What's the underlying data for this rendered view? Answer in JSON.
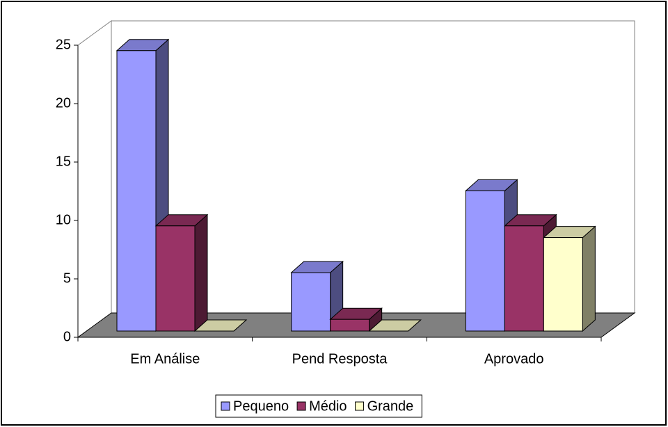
{
  "chart_data": {
    "type": "bar",
    "categories": [
      "Em Análise",
      "Pend Resposta",
      "Aprovado"
    ],
    "series": [
      {
        "name": "Pequeno",
        "color": "#9999ff",
        "values": [
          24,
          5,
          12
        ]
      },
      {
        "name": "Médio",
        "color": "#993366",
        "values": [
          9,
          1,
          9
        ]
      },
      {
        "name": "Grande",
        "color": "#ffffcc",
        "values": [
          0,
          0,
          8
        ]
      }
    ],
    "ylim": [
      0,
      25
    ],
    "yticks": [
      0,
      5,
      10,
      15,
      20,
      25
    ],
    "grid": false,
    "legend": "bottom"
  }
}
